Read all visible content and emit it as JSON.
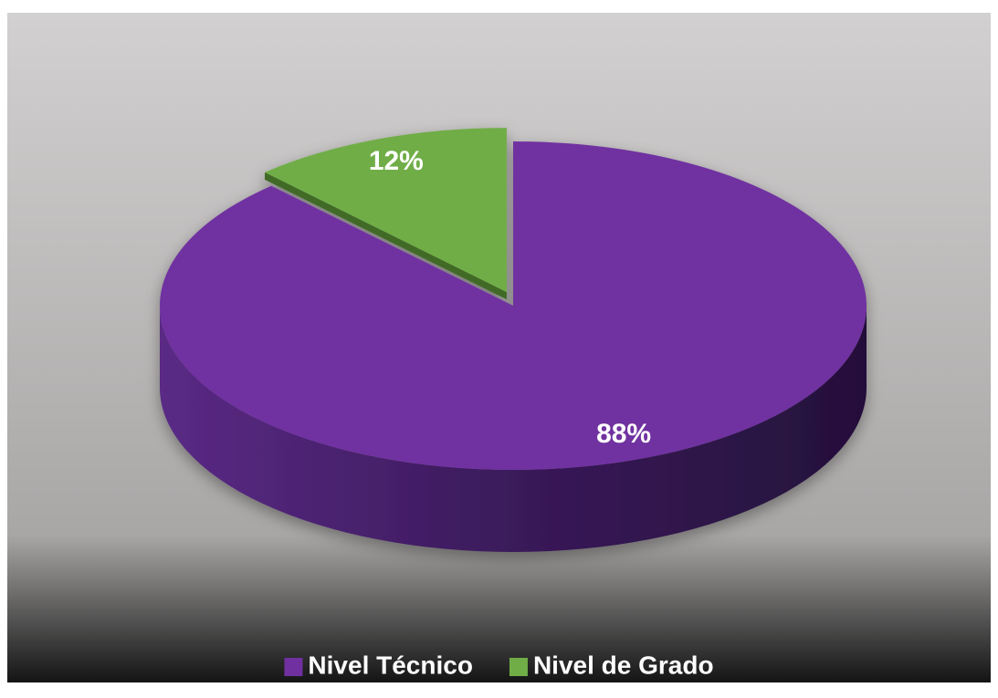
{
  "chart_data": {
    "type": "pie",
    "categories": [
      "Nivel Técnico",
      "Nivel de Grado"
    ],
    "values": [
      88,
      12
    ],
    "value_labels": [
      "88%",
      "12%"
    ],
    "colors": [
      "#7030a0",
      "#70ad47"
    ],
    "legend": "bottom"
  }
}
